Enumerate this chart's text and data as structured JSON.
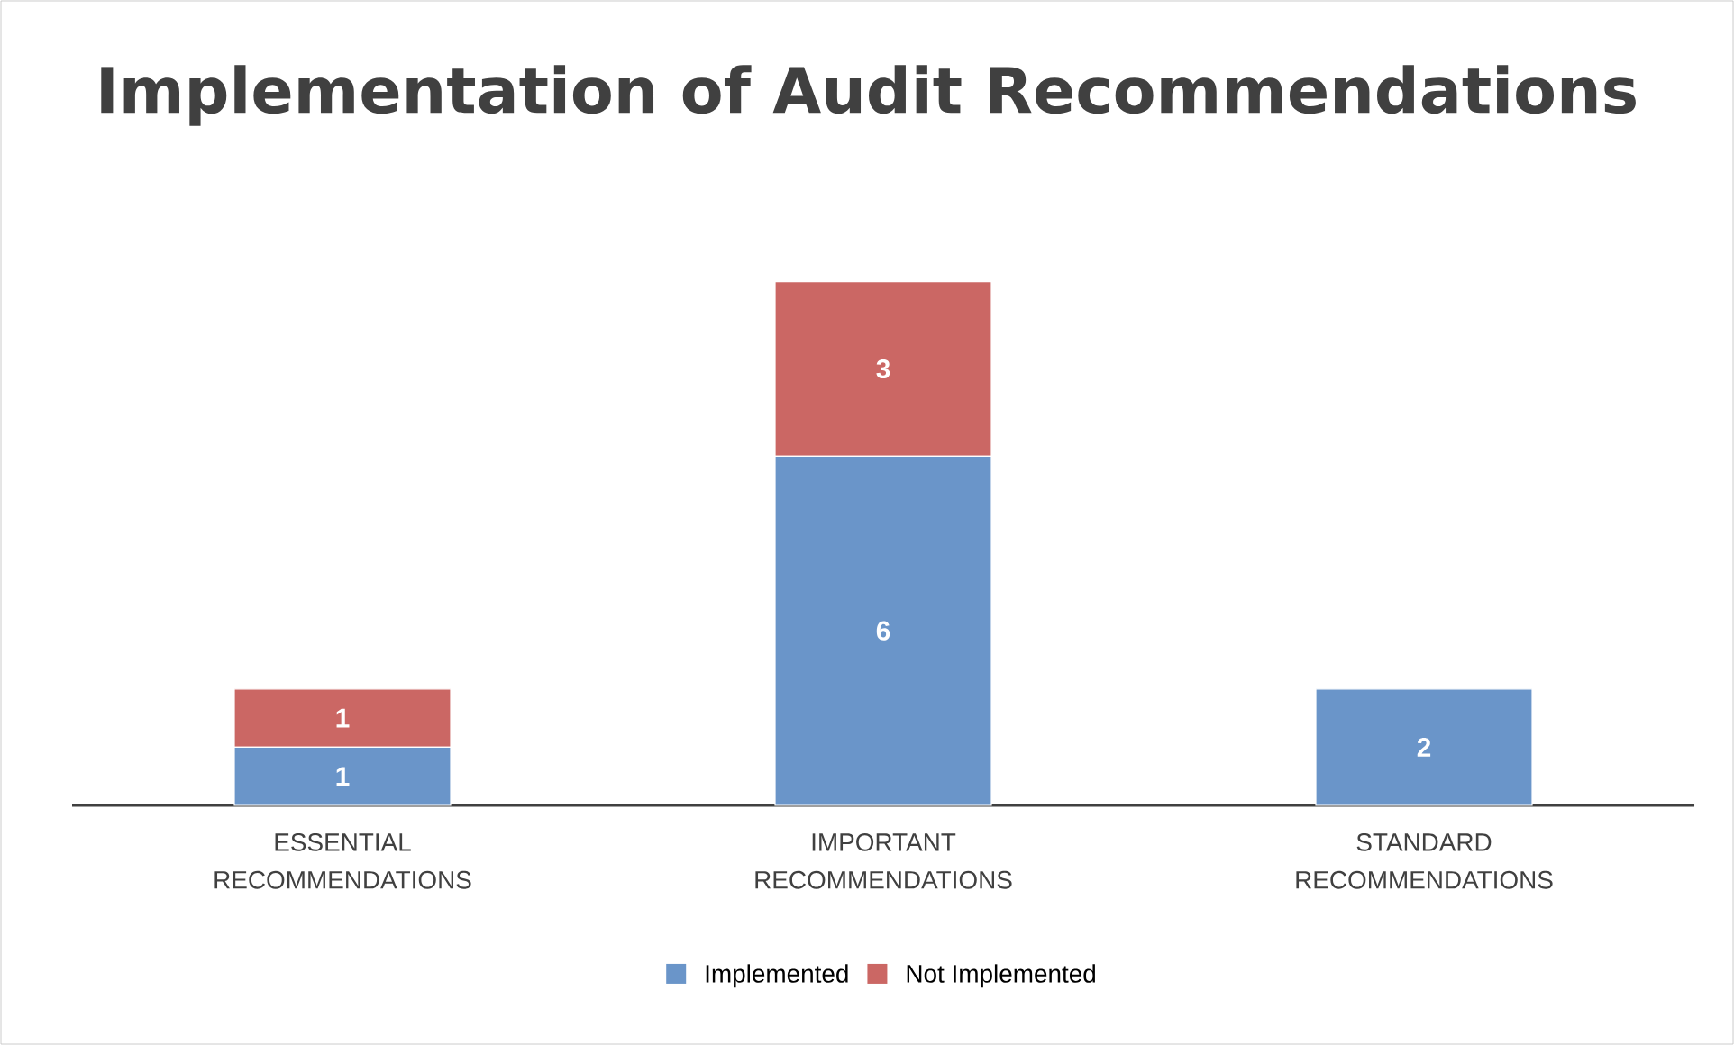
{
  "chart_data": {
    "type": "bar",
    "title": "Implementation of Audit Recommendations",
    "categories": [
      "ESSENTIAL RECOMMENDATIONS",
      "IMPORTANT RECOMMENDATIONS",
      "STANDARD RECOMMENDATIONS"
    ],
    "series": [
      {
        "name": "Implemented",
        "color": "#6a95c9",
        "values": [
          1,
          6,
          2
        ]
      },
      {
        "name": "Not Implemented",
        "color": "#cb6764",
        "values": [
          1,
          3,
          null
        ]
      }
    ],
    "stacked": true,
    "data_labels": true,
    "legend": "bottom"
  }
}
